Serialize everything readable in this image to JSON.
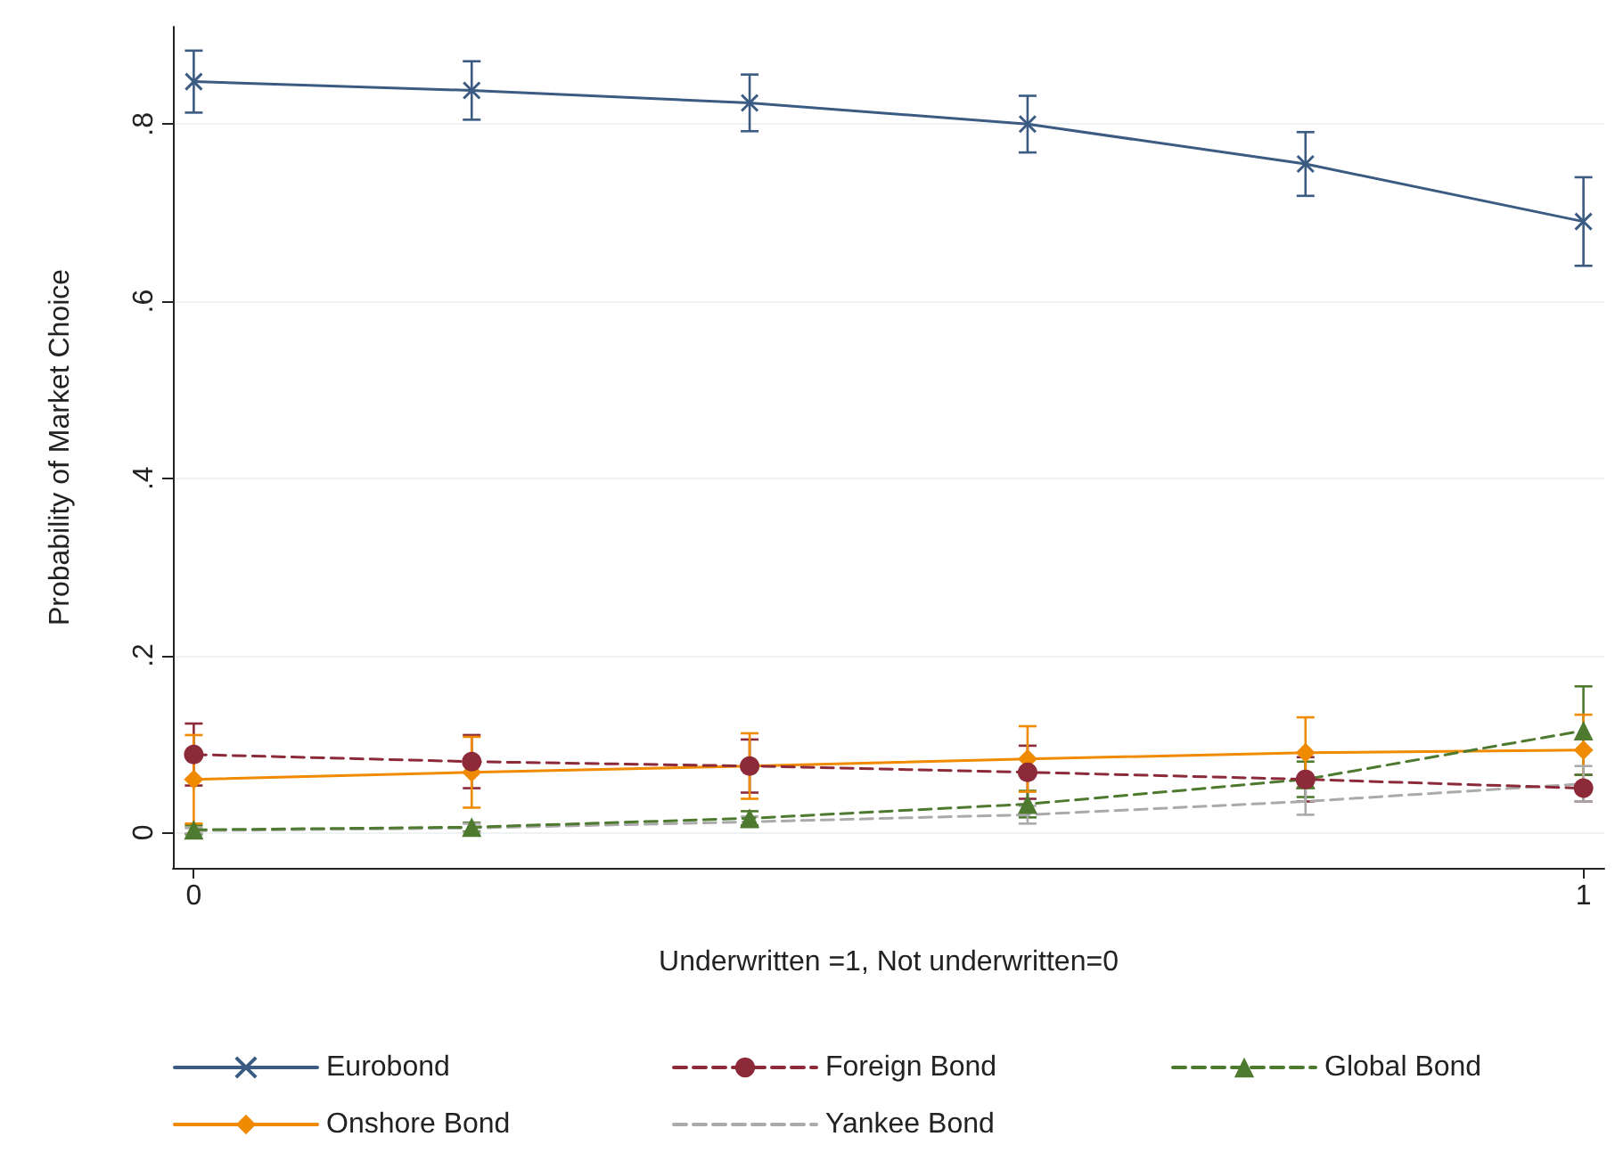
{
  "chart_data": {
    "type": "line",
    "xlabel": "Underwritten =1, Not underwritten=0",
    "ylabel": "Probability of Market Choice",
    "x": [
      0,
      0.2,
      0.4,
      0.6,
      0.8,
      1
    ],
    "xlim": [
      -0.015,
      1.015
    ],
    "xticks": [
      0,
      1
    ],
    "ylim": [
      -0.04,
      0.91
    ],
    "yticks": [
      {
        "value": 0,
        "label": "0"
      },
      {
        "value": 0.2,
        "label": ".2"
      },
      {
        "value": 0.4,
        "label": ".4"
      },
      {
        "value": 0.6,
        "label": ".6"
      },
      {
        "value": 0.8,
        "label": ".8"
      }
    ],
    "grid": "y",
    "legend": "bottom",
    "series": [
      {
        "name": "Eurobond",
        "color": "#3b5b82",
        "marker": "cross",
        "line_style": "solid",
        "values": [
          0.848,
          0.838,
          0.824,
          0.8,
          0.755,
          0.69
        ],
        "errors": [
          0.035,
          0.033,
          0.032,
          0.032,
          0.036,
          0.05
        ]
      },
      {
        "name": "Foreign Bond",
        "color": "#8c2a3a",
        "marker": "circle",
        "line_style": "dashed",
        "values": [
          0.088,
          0.08,
          0.075,
          0.068,
          0.06,
          0.05
        ],
        "errors": [
          0.035,
          0.03,
          0.03,
          0.03,
          0.025,
          0.015
        ]
      },
      {
        "name": "Global Bond",
        "color": "#4d7a2e",
        "marker": "triangle",
        "line_style": "dashed",
        "values": [
          0.003,
          0.006,
          0.016,
          0.032,
          0.06,
          0.115
        ],
        "errors": [
          0.005,
          0.005,
          0.008,
          0.015,
          0.02,
          0.05
        ]
      },
      {
        "name": "Onshore Bond",
        "color": "#f08a00",
        "marker": "diamond",
        "line_style": "solid",
        "values": [
          0.06,
          0.068,
          0.075,
          0.083,
          0.09,
          0.093
        ],
        "errors": [
          0.05,
          0.04,
          0.037,
          0.037,
          0.04,
          0.04
        ]
      },
      {
        "name": "Yankee Bond",
        "color": "#aaaaaa",
        "marker": "none",
        "line_style": "dashed",
        "values": [
          0.002,
          0.005,
          0.012,
          0.02,
          0.035,
          0.055
        ],
        "errors": [
          0.003,
          0.005,
          0.006,
          0.01,
          0.015,
          0.02
        ]
      }
    ]
  }
}
